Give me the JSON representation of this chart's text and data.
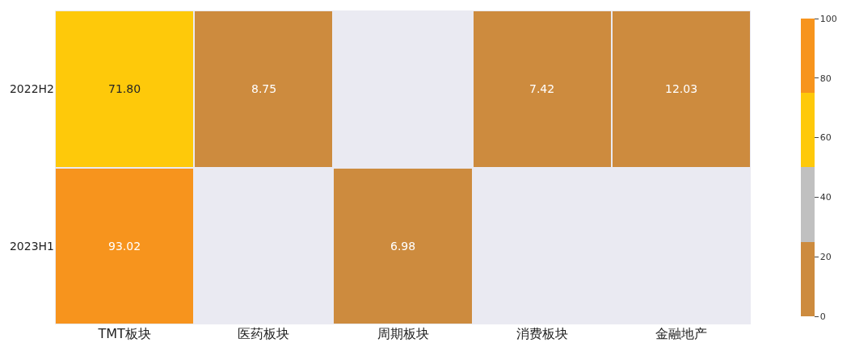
{
  "chart_data": {
    "type": "heatmap",
    "categories": [
      "TMT板块",
      "医药板块",
      "周期板块",
      "消费板块",
      "金融地产"
    ],
    "y_categories": [
      "2022H2",
      "2023H1"
    ],
    "cells": [
      [
        71.8,
        8.75,
        null,
        7.42,
        12.03
      ],
      [
        93.02,
        null,
        6.98,
        null,
        null
      ]
    ],
    "cell_labels": [
      [
        "71.80",
        "8.75",
        null,
        "7.42",
        "12.03"
      ],
      [
        "93.02",
        null,
        "6.98",
        null,
        null
      ]
    ],
    "colors": [
      "#cd8b3e",
      "#c0c0c0",
      "#fec90a",
      "#f7941d"
    ],
    "clim": [
      0,
      100
    ],
    "cticks": [
      0,
      20,
      40,
      60,
      80,
      100
    ]
  }
}
